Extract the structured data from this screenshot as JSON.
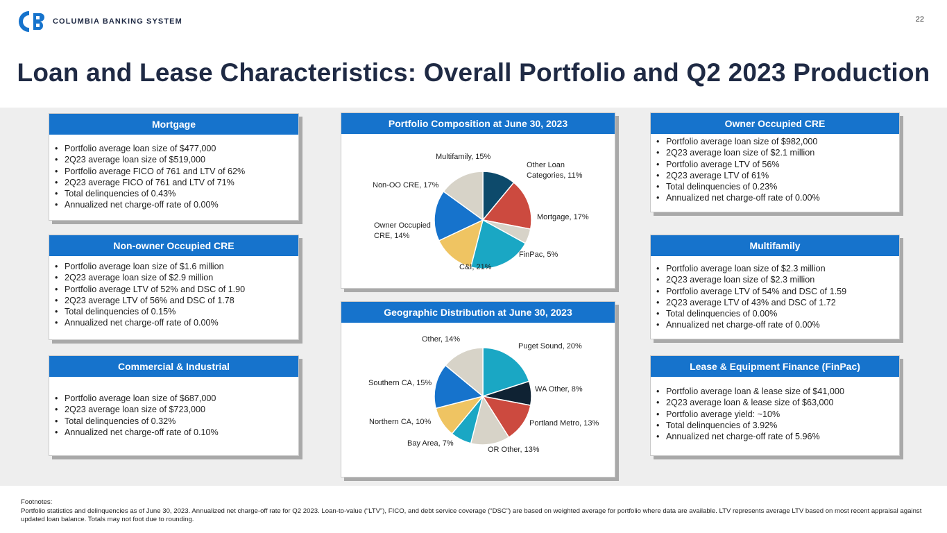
{
  "header": {
    "logo_text": "COLUMBIA BANKING SYSTEM",
    "page_number": "22",
    "title": "Loan and Lease Characteristics: Overall Portfolio and Q2 2023 Production"
  },
  "colors": {
    "brand_blue": "#1673cc",
    "title_navy": "#1f2a44"
  },
  "cards": {
    "mortgage": {
      "heading": "Mortgage",
      "bullets": [
        "Portfolio average loan size of $477,000",
        "2Q23 average loan size of $519,000",
        "Portfolio average FICO of 761 and LTV of 62%",
        "2Q23 average FICO of 761 and LTV of 71%",
        "Total delinquencies of 0.43%",
        "Annualized net charge-off rate of 0.00%"
      ]
    },
    "non_owner_cre": {
      "heading": "Non-owner Occupied CRE",
      "bullets": [
        "Portfolio average loan size of $1.6 million",
        "2Q23 average loan size of $2.9 million",
        "Portfolio average LTV of 52% and DSC of 1.90",
        "2Q23 average LTV of 56% and DSC of 1.78",
        "Total delinquencies of 0.15%",
        "Annualized net charge-off rate of 0.00%"
      ]
    },
    "commercial": {
      "heading": "Commercial & Industrial",
      "bullets": [
        "Portfolio average loan size of $687,000",
        "2Q23 average loan size of $723,000",
        "Total delinquencies of 0.32%",
        "Annualized net charge-off rate of 0.10%"
      ]
    },
    "owner_cre": {
      "heading": "Owner Occupied CRE",
      "bullets": [
        "Portfolio average loan size of $982,000",
        "2Q23 average loan size of $2.1 million",
        "Portfolio average LTV of 56%",
        "2Q23 average LTV of 61%",
        "Total delinquencies of 0.23%",
        "Annualized net charge-off rate of 0.00%"
      ]
    },
    "multifamily": {
      "heading": "Multifamily",
      "bullets": [
        "Portfolio average loan size of $2.3 million",
        "2Q23 average loan size of $2.3 million",
        "Portfolio average LTV of 54% and DSC of 1.59",
        "2Q23 average LTV of 43% and DSC of 1.72",
        "Total delinquencies of 0.00%",
        "Annualized net charge-off rate of 0.00%"
      ]
    },
    "finpac": {
      "heading": "Lease & Equipment Finance (FinPac)",
      "bullets": [
        "Portfolio average loan & lease size of $41,000",
        "2Q23 average loan & lease size of $63,000",
        "Portfolio average yield: ~10%",
        "Total delinquencies of 3.92%",
        "Annualized net charge-off rate of 5.96%"
      ]
    }
  },
  "chart_data": [
    {
      "type": "pie",
      "title": "Portfolio Composition at June 30, 2023",
      "slices": [
        {
          "label": "Other Loan Categories, 11%",
          "value": 11,
          "color": "#0d4a6b"
        },
        {
          "label": "Mortgage, 17%",
          "value": 17,
          "color": "#cc4a3f"
        },
        {
          "label": "FinPac, 5%",
          "value": 5,
          "color": "#d7d3c8"
        },
        {
          "label": "C&I, 21%",
          "value": 21,
          "color": "#1aa7c4"
        },
        {
          "label": "Owner Occupied CRE, 14%",
          "value": 14,
          "color": "#efc462"
        },
        {
          "label": "Non-OO CRE, 17%",
          "value": 17,
          "color": "#1673cc"
        },
        {
          "label": "Multifamily, 15%",
          "value": 15,
          "color": "#d7d3c8"
        }
      ]
    },
    {
      "type": "pie",
      "title": "Geographic Distribution at June 30, 2023",
      "slices": [
        {
          "label": "Puget Sound, 20%",
          "value": 20,
          "color": "#1aa7c4"
        },
        {
          "label": "WA Other, 8%",
          "value": 8,
          "color": "#0f2233"
        },
        {
          "label": "Portland Metro, 13%",
          "value": 13,
          "color": "#cc4a3f"
        },
        {
          "label": "OR Other, 13%",
          "value": 13,
          "color": "#d7d3c8"
        },
        {
          "label": "Bay Area, 7%",
          "value": 7,
          "color": "#1aa7c4"
        },
        {
          "label": "Northern CA, 10%",
          "value": 10,
          "color": "#efc462"
        },
        {
          "label": "Southern CA, 15%",
          "value": 15,
          "color": "#1673cc"
        },
        {
          "label": "Other, 14%",
          "value": 14,
          "color": "#d7d3c8"
        }
      ]
    }
  ],
  "footnotes": {
    "heading": "Footnotes:",
    "text": "Portfolio statistics and delinquencies as of June 30, 2023. Annualized net charge-off rate for Q2 2023. Loan-to-value (“LTV”), FICO, and debt service coverage (“DSC”) are based on weighted average for portfolio where data are available. LTV represents average LTV based on most recent appraisal against updated loan balance.  Totals may not foot due to rounding."
  }
}
